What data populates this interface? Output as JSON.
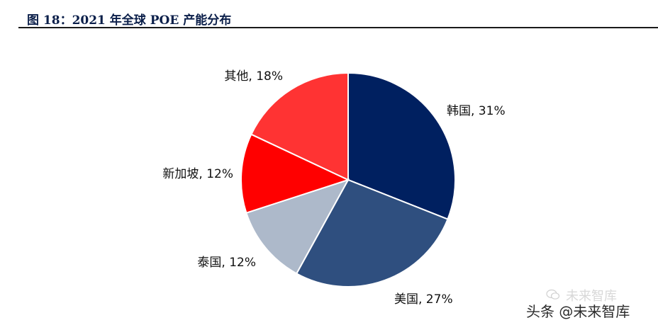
{
  "figure": {
    "title": "图 18：2021 年全球 POE 产能分布"
  },
  "chart_data": {
    "type": "pie",
    "slices": [
      {
        "label": "韩国, 31%",
        "name": "韩国",
        "value": 31,
        "color": "#002060"
      },
      {
        "label": "美国, 27%",
        "name": "美国",
        "value": 27,
        "color": "#2f4f7f"
      },
      {
        "label": "泰国, 12%",
        "name": "泰国",
        "value": 12,
        "color": "#adb9ca"
      },
      {
        "label": "新加坡, 12%",
        "name": "新加坡",
        "value": 12,
        "color": "#ff0000"
      },
      {
        "label": "其他, 18%",
        "name": "其他",
        "value": 18,
        "color": "#ff3333"
      }
    ],
    "start": "12 o'clock",
    "direction": "clockwise",
    "legend": "none"
  },
  "watermark": {
    "line1": "未来智库",
    "line2": "头条 @未来智库"
  }
}
